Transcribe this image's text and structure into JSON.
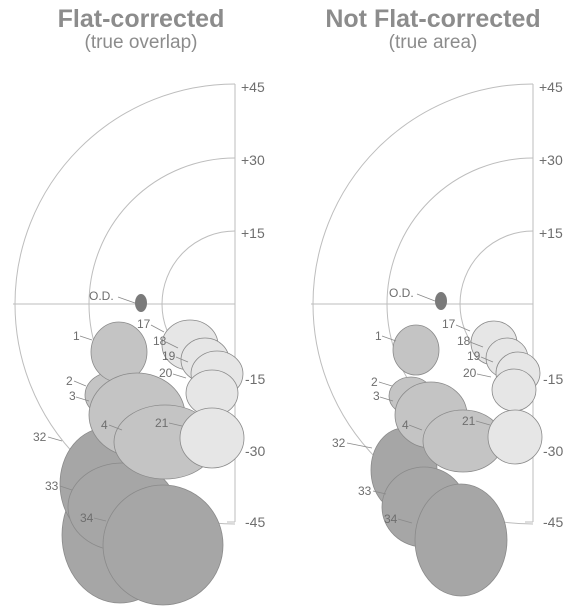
{
  "panels": [
    {
      "title": "Flat-corrected",
      "subtitle": "(true overlap)",
      "axis_labels": [
        "+45",
        "+30",
        "+15",
        "-15",
        "-30",
        "-45"
      ],
      "optic_disc_label": "O.D.",
      "field_labels": [
        "1",
        "2",
        "3",
        "4",
        "17",
        "18",
        "19",
        "20",
        "21",
        "32",
        "33",
        "34"
      ]
    },
    {
      "title": "Not Flat-corrected",
      "subtitle": "(true area)",
      "axis_labels": [
        "+45",
        "+30",
        "+15",
        "-15",
        "-30",
        "-45"
      ],
      "optic_disc_label": "O.D.",
      "field_labels": [
        "1",
        "2",
        "3",
        "4",
        "17",
        "18",
        "19",
        "20",
        "21",
        "32",
        "33",
        "34"
      ]
    }
  ],
  "colors": {
    "title": "#8c8c8c",
    "grid": "#bdbdbd",
    "optic_disc": "#7a7a7a",
    "dark_fields": "#a6a6a6",
    "mid_fields": "#c4c4c4",
    "light_fields": "#e6e6e6",
    "outline": "#8a8a8a"
  }
}
